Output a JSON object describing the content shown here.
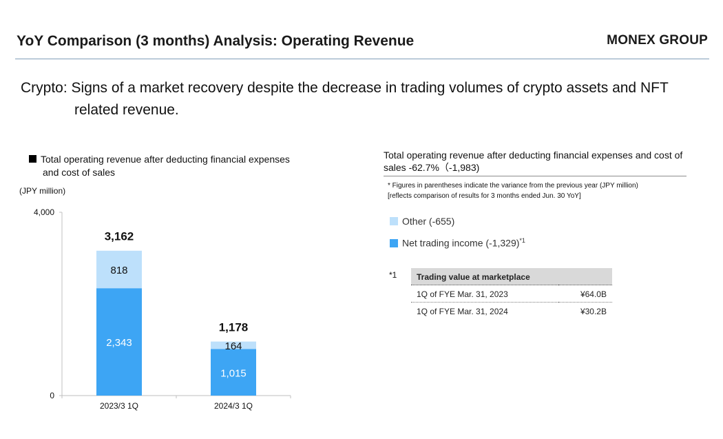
{
  "header": {
    "title": "YoY Comparison (3 months) Analysis: Operating Revenue",
    "brand": "MONEX GROUP"
  },
  "headline": {
    "line1": "Crypto: Signs of a market recovery despite the decrease in trading volumes of crypto assets and NFT",
    "line2": "related revenue."
  },
  "left_legend": {
    "line1": "Total operating revenue after deducting financial expenses",
    "line2": "and cost of sales"
  },
  "unit_label": "(JPY million)",
  "right_panel": {
    "title": "Total operating revenue after deducting financial expenses and cost of sales -62.7%（-1,983)",
    "note_line1": "* Figures in parentheses indicate the variance from the previous year (JPY million)",
    "note_line2": "[reflects comparison of results for 3 months ended Jun. 30 YoY]",
    "legend_other": "Other (-655)",
    "legend_net": "Net trading income (-1,329)",
    "legend_net_sup": "*1",
    "footnote_mark": "*1",
    "table": {
      "header": "Trading value at marketplace",
      "rows": [
        {
          "label": "1Q of FYE Mar. 31, 2023",
          "value": "¥64.0B"
        },
        {
          "label": "1Q of FYE Mar. 31, 2024",
          "value": "¥30.2B"
        }
      ]
    }
  },
  "colors": {
    "net_trading_income": "#3da5f4",
    "other": "#bde0fb",
    "text": "#111111"
  },
  "chart_data": {
    "type": "bar",
    "stacked": true,
    "categories": [
      "2023/3 1Q",
      "2024/3 1Q"
    ],
    "series": [
      {
        "name": "Net trading income",
        "values": [
          2343,
          1015
        ],
        "color": "#3da5f4",
        "label_color": "#ffffff"
      },
      {
        "name": "Other",
        "values": [
          818,
          164
        ],
        "color": "#bde0fb",
        "label_color": "#111111"
      }
    ],
    "totals": [
      3162,
      1178
    ],
    "ylim": [
      0,
      4000
    ],
    "yticks": [
      0,
      4000
    ],
    "ytick_labels": [
      "0",
      "4,000"
    ],
    "ylabel": "(JPY million)",
    "grid": false
  }
}
